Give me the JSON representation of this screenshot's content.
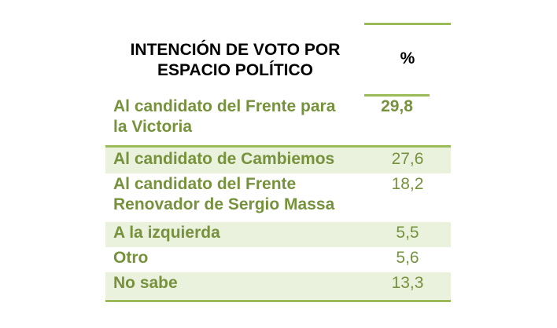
{
  "header": {
    "title_line1": "INTENCIÓN DE VOTO POR",
    "title_line2": "ESPACIO POLÍTICO",
    "percent_label": "%"
  },
  "rows": [
    {
      "label_line1": "Al candidato del Frente para",
      "label_line2": "la Victoria",
      "value": "29,8"
    },
    {
      "label_line1": "Al candidato de Cambiemos",
      "value": "27,6"
    },
    {
      "label_line1": "Al candidato del Frente",
      "label_line2": "Renovador de Sergio Massa",
      "value": "18,2"
    },
    {
      "label_line1": "A la izquierda",
      "value": "5,5"
    },
    {
      "label_line1": "Otro",
      "value": "5,6"
    },
    {
      "label_line1": "No sabe",
      "value": "13,3"
    }
  ],
  "colors": {
    "accent": "#9bbb59",
    "text": "#76923c",
    "shade": "#eaf1dd"
  }
}
